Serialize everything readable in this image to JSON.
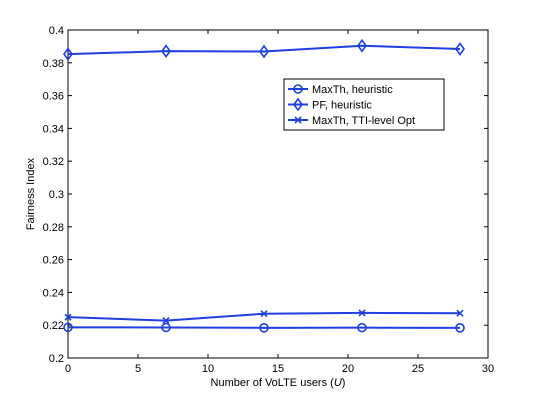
{
  "chart_data": {
    "type": "line",
    "xlabel": "Number of VoLTE users (U)",
    "xlabel_parts": {
      "prefix": "Number of VoLTE users (",
      "variable": "U",
      "suffix": ")"
    },
    "ylabel": "Fairness Index",
    "xlim": [
      0,
      30
    ],
    "ylim": [
      0.2,
      0.4
    ],
    "xticks": [
      0,
      5,
      10,
      15,
      20,
      25,
      30
    ],
    "yticks": [
      0.2,
      0.22,
      0.24,
      0.26,
      0.28,
      0.3,
      0.32,
      0.34,
      0.36,
      0.38,
      0.4
    ],
    "ytick_labels": [
      "0.2",
      "0.22",
      "0.24",
      "0.26",
      "0.28",
      "0.3",
      "0.32",
      "0.34",
      "0.36",
      "0.38",
      "0.4"
    ],
    "grid": false,
    "legend_position": "top-right",
    "line_color": "#1f3fe0",
    "series": [
      {
        "name": "MaxTh, heuristic",
        "marker": "circle",
        "x": [
          0,
          7,
          14,
          21,
          28
        ],
        "values": [
          0.2187,
          0.2186,
          0.2184,
          0.2185,
          0.2184
        ]
      },
      {
        "name": "PF, heuristic",
        "marker": "diamond",
        "x": [
          0,
          7,
          14,
          21,
          28
        ],
        "values": [
          0.3853,
          0.3871,
          0.3869,
          0.3904,
          0.3884
        ]
      },
      {
        "name": "MaxTh, TTI-level Opt",
        "marker": "x",
        "x": [
          0,
          7,
          14,
          21,
          28
        ],
        "values": [
          0.2249,
          0.2228,
          0.227,
          0.2275,
          0.2273
        ]
      }
    ]
  }
}
